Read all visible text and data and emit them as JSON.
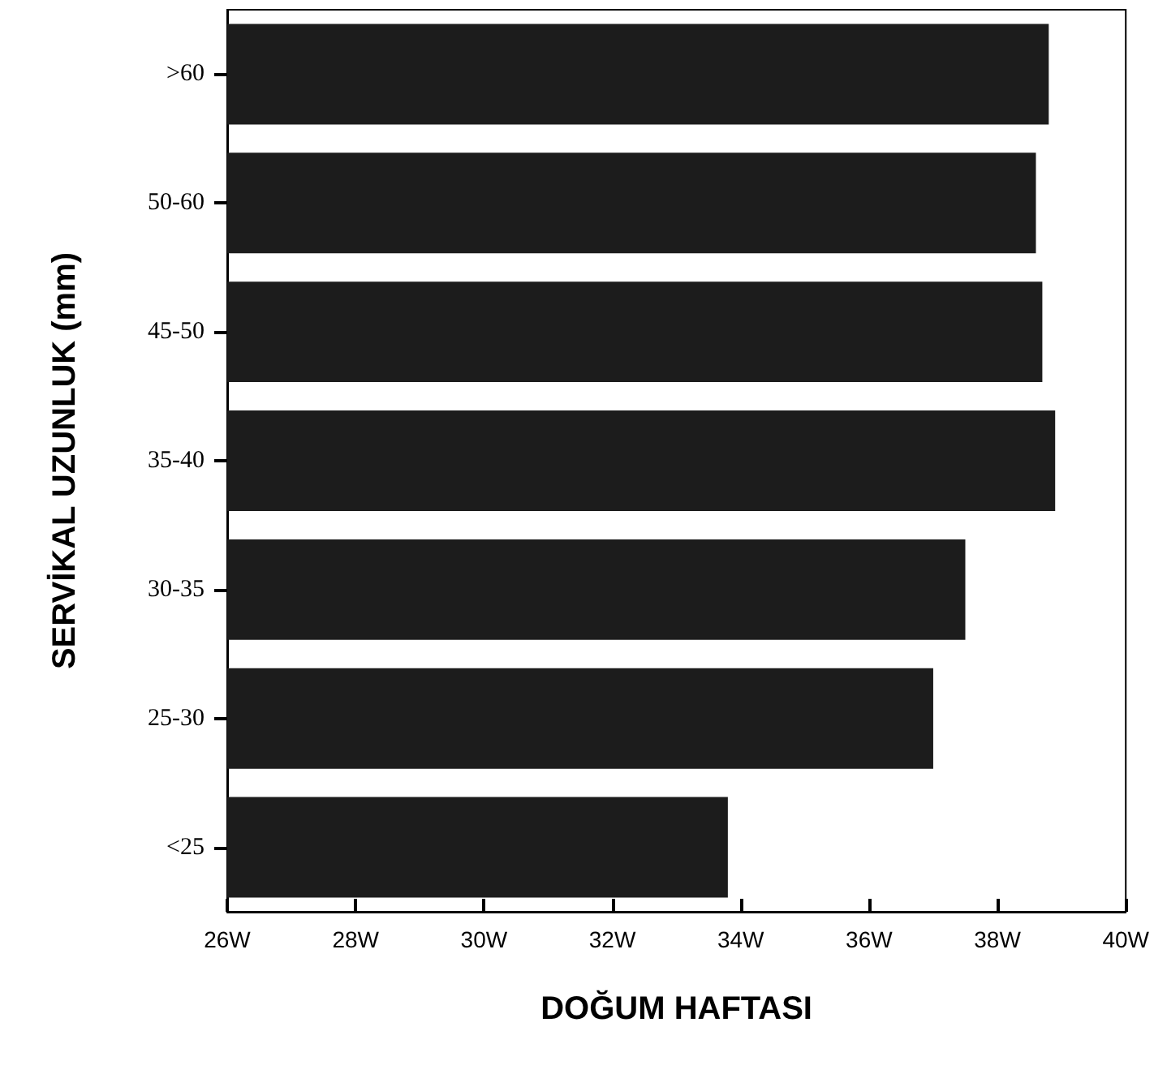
{
  "chart_data": {
    "type": "bar",
    "orientation": "horizontal",
    "xlabel": "DOĞUM HAFTASI",
    "ylabel": "SERVİKAL UZUNLUK (mm)",
    "categories": [
      ">60",
      "50-60",
      "45-50",
      "35-40",
      "30-35",
      "25-30",
      "<25"
    ],
    "values": [
      38.8,
      38.6,
      38.7,
      38.9,
      37.5,
      37.0,
      33.8
    ],
    "color": "#1c1c1c",
    "xlim": [
      26,
      40
    ],
    "xticks": [
      {
        "value": 26,
        "label": "26W"
      },
      {
        "value": 28,
        "label": "28W"
      },
      {
        "value": 30,
        "label": "30W"
      },
      {
        "value": 32,
        "label": "32W"
      },
      {
        "value": 34,
        "label": "34W"
      },
      {
        "value": 36,
        "label": "36W"
      },
      {
        "value": 38,
        "label": "38W"
      },
      {
        "value": 40,
        "label": "40W"
      }
    ],
    "grid": false
  }
}
